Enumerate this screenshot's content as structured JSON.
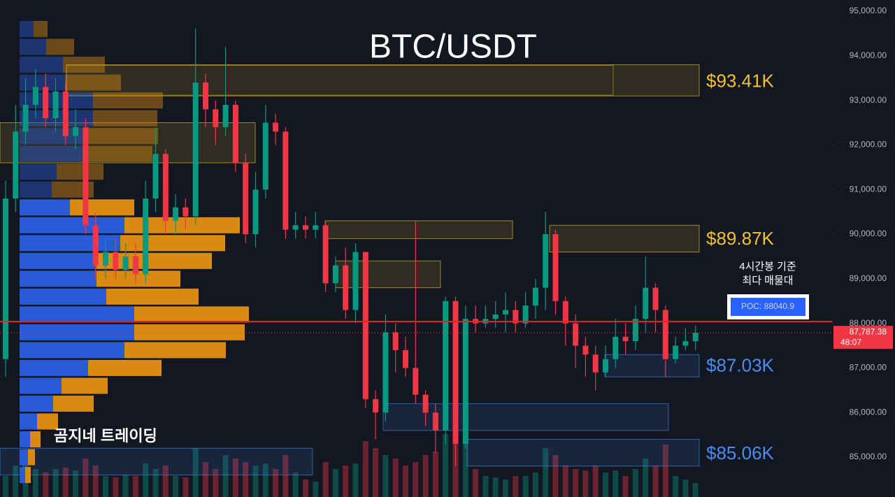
{
  "chart_data": {
    "type": "candlestick",
    "title": "BTC/USDT",
    "watermark": "곰지네 트레이딩",
    "ylim": [
      84107,
      95251
    ],
    "yticks": [
      {
        "value": 95000,
        "label": "95,000.00"
      },
      {
        "value": 94000,
        "label": "94,000.00"
      },
      {
        "value": 93000,
        "label": "93,000.00"
      },
      {
        "value": 92000,
        "label": "92,000.00"
      },
      {
        "value": 91000,
        "label": "91,000.00"
      },
      {
        "value": 90000,
        "label": "90,000.00"
      },
      {
        "value": 89000,
        "label": "89,000.00"
      },
      {
        "value": 88000,
        "label": "88,000.00"
      },
      {
        "value": 87000,
        "label": "87,000.00"
      },
      {
        "value": 86000,
        "label": "86,000.00"
      },
      {
        "value": 85000,
        "label": "85,000.00"
      }
    ],
    "up_color": "#089981",
    "down_color": "#f23645",
    "open": [
      87200,
      90800,
      92300,
      92900,
      93300,
      92600,
      93200,
      92200,
      92400,
      90200,
      89300,
      89600,
      89200,
      89500,
      89100,
      90800,
      91800,
      90300,
      90600,
      90400,
      93400,
      92800,
      92400,
      92900,
      91600,
      90000,
      91000,
      92500,
      92300,
      90100,
      90200,
      90100,
      90200,
      88900,
      89300,
      88300,
      89600,
      86300,
      86000,
      87800,
      87400,
      87000,
      86400,
      86000,
      85600,
      88500,
      85300,
      88100,
      88000,
      88100,
      88200,
      88300,
      88000,
      88400,
      88800,
      90000,
      88500,
      88000,
      87500,
      87300,
      86900,
      87200,
      87700,
      87600,
      88100,
      88800,
      88300,
      87200,
      87500,
      87600
    ],
    "high": [
      91200,
      92900,
      93500,
      93700,
      93600,
      93500,
      93400,
      92800,
      92600,
      90500,
      89900,
      89900,
      89800,
      89800,
      91200,
      92400,
      91900,
      90900,
      90800,
      94600,
      93600,
      93000,
      94200,
      93000,
      91800,
      91400,
      92900,
      92700,
      92400,
      90500,
      90400,
      90500,
      90300,
      89500,
      89700,
      89800,
      89600,
      86500,
      88200,
      88000,
      87700,
      90300,
      86500,
      86200,
      88600,
      88600,
      88400,
      88400,
      88400,
      88500,
      88700,
      88500,
      88700,
      89000,
      90500,
      90100,
      88600,
      88200,
      87700,
      87500,
      87500,
      88100,
      88000,
      88400,
      89500,
      88900,
      88400,
      87700,
      87900,
      87950
    ],
    "low": [
      86800,
      90500,
      92000,
      92600,
      92400,
      92300,
      92000,
      91900,
      90000,
      89000,
      89000,
      89000,
      89000,
      88900,
      88900,
      90500,
      90000,
      90000,
      90100,
      90200,
      92400,
      92000,
      92200,
      91400,
      89800,
      89700,
      90800,
      92000,
      89900,
      89900,
      89900,
      89900,
      88700,
      88700,
      88100,
      88000,
      86100,
      85400,
      85800,
      86900,
      86800,
      86200,
      85700,
      85100,
      85300,
      84800,
      85200,
      87800,
      87900,
      87900,
      87800,
      87800,
      87900,
      88100,
      88300,
      88200,
      87500,
      87000,
      86800,
      86500,
      86800,
      87000,
      87300,
      87400,
      87800,
      87800,
      86800,
      87100,
      87400,
      87400
    ],
    "close": [
      90800,
      92300,
      92900,
      93300,
      92600,
      93200,
      92200,
      92400,
      90200,
      89300,
      89600,
      89200,
      89500,
      89100,
      90800,
      91800,
      90300,
      90600,
      90400,
      93400,
      92800,
      92400,
      92900,
      91600,
      90000,
      91000,
      92500,
      92300,
      90100,
      90200,
      90100,
      90200,
      88900,
      89300,
      88300,
      89600,
      86300,
      86000,
      87800,
      87400,
      87000,
      86400,
      86000,
      85600,
      88500,
      85300,
      88100,
      88000,
      88100,
      88200,
      88300,
      88000,
      88400,
      88800,
      90000,
      88500,
      88000,
      87500,
      87300,
      86900,
      87200,
      87700,
      87600,
      88100,
      88800,
      88300,
      87200,
      87500,
      87600,
      87790
    ],
    "volume": [
      30,
      45,
      50,
      40,
      35,
      40,
      42,
      38,
      55,
      45,
      30,
      28,
      32,
      30,
      48,
      40,
      45,
      30,
      28,
      70,
      50,
      40,
      60,
      55,
      50,
      45,
      48,
      40,
      60,
      35,
      25,
      22,
      50,
      40,
      45,
      48,
      80,
      70,
      60,
      55,
      45,
      50,
      60,
      65,
      90,
      95,
      85,
      40,
      30,
      28,
      25,
      30,
      30,
      35,
      70,
      60,
      45,
      40,
      38,
      45,
      35,
      38,
      30,
      40,
      55,
      45,
      75,
      30,
      25,
      20
    ],
    "volume_profile": {
      "prices": [
        94600,
        94200,
        93800,
        93400,
        93000,
        92600,
        92200,
        91800,
        91400,
        91000,
        90600,
        90200,
        89800,
        89400,
        89000,
        88600,
        88200,
        87800,
        87400,
        87000,
        86600,
        86200,
        85800,
        85400,
        85000,
        84600
      ],
      "buy": [
        20,
        38,
        62,
        65,
        105,
        105,
        98,
        90,
        53,
        46,
        72,
        150,
        144,
        110,
        110,
        124,
        164,
        164,
        150,
        98,
        60,
        48,
        25,
        15,
        12,
        8
      ],
      "sell": [
        20,
        40,
        60,
        80,
        100,
        92,
        100,
        100,
        67,
        60,
        92,
        165,
        150,
        165,
        120,
        132,
        164,
        158,
        145,
        105,
        66,
        58,
        30,
        15,
        10,
        8
      ],
      "buy_color": "#2a5bd7",
      "sell_color": "#d98a12"
    },
    "zones": [
      {
        "from": 93100,
        "to": 93800,
        "level": 93410,
        "label": "$93.41K",
        "color": "#d4b22a"
      },
      {
        "from": 89600,
        "to": 90200,
        "level": 89870,
        "label": "$89.87K",
        "color": "#d4b22a"
      },
      {
        "from": 89900,
        "to": 90300,
        "color": "#d4b22a"
      },
      {
        "from": 88800,
        "to": 89400,
        "color": "#d4b22a"
      },
      {
        "from": 91600,
        "to": 92500,
        "color": "#d4b22a"
      },
      {
        "from": 86800,
        "to": 87300,
        "level": 87030,
        "label": "$87.03K",
        "color": "#3b7de0"
      },
      {
        "from": 85600,
        "to": 86200,
        "color": "#3b7de0"
      },
      {
        "from": 84800,
        "to": 85400,
        "level": 85060,
        "label": "$85.06K",
        "color": "#3b7de0"
      },
      {
        "from": 84600,
        "to": 85200,
        "color": "#3b7de0"
      }
    ],
    "poc": {
      "value": 88040.9,
      "label": "POC: 88040.9"
    },
    "poc_note": [
      "4시간봉 기준",
      "최다 매물대"
    ],
    "last_price": {
      "value": 87787.38,
      "label": "87,787.38"
    },
    "countdown": "48:07"
  }
}
